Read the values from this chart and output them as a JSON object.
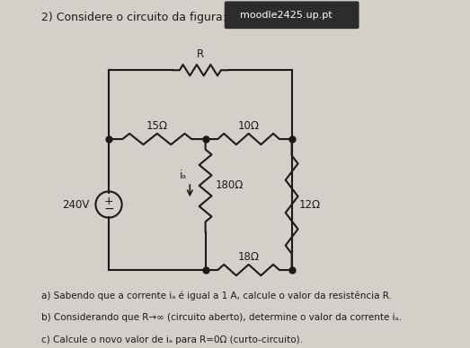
{
  "bg_color": "#d4cfc8",
  "title_text": "2) Considere o circuito da figura:",
  "moodle_text": "moodle2425.up.pt",
  "question_a": "a) Sabendo que a corrente iₐ é igual a 1 A, calcule o valor da resistência R.",
  "question_b": "b) Considerando que R→∞ (circuito aberto), determine o valor da corrente iₐ.",
  "question_c": "c) Calcule o novo valor de iₐ para R=0Ω (curto-circuito).",
  "wire_color": "#1a1a1a",
  "resistor_color": "#1a1a1a",
  "source_color": "#1a1a1a",
  "node_color": "#1a1a1a",
  "text_color": "#1a1a1a",
  "label_15": "15Ω",
  "label_10": "10Ω",
  "label_180": "180Ω",
  "label_12": "12Ω",
  "label_18": "18Ω",
  "label_R": "R",
  "label_240": "240V",
  "label_ia": "iₐ",
  "source_voltage": "240V"
}
